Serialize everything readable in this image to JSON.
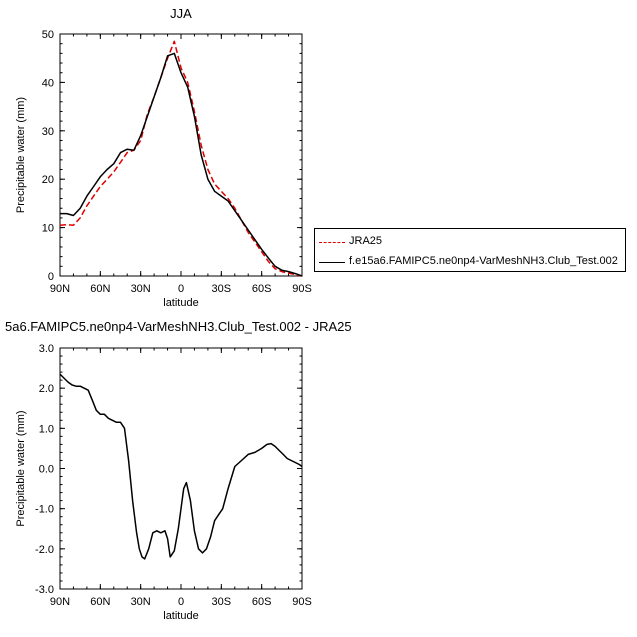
{
  "chart_data": [
    {
      "type": "line",
      "title": "JJA",
      "xlabel": "latitude",
      "ylabel": "Precipitable water (mm)",
      "xlim": [
        90,
        -90
      ],
      "ylim": [
        0,
        50
      ],
      "xticks": [
        90,
        60,
        30,
        0,
        -30,
        -60,
        -90
      ],
      "xtick_labels": [
        "90N",
        "60N",
        "30N",
        "0",
        "30S",
        "60S",
        "90S"
      ],
      "yticks": [
        0,
        10,
        20,
        30,
        40,
        50
      ],
      "ytick_labels": [
        "0",
        "10",
        "20",
        "30",
        "40",
        "50"
      ],
      "legend": "right",
      "series": [
        {
          "name": "JRA25",
          "color": "#e00000",
          "style": "dashed",
          "x": [
            90,
            85,
            80,
            75,
            70,
            65,
            60,
            55,
            50,
            45,
            40,
            35,
            30,
            25,
            20,
            15,
            10,
            5,
            0,
            -5,
            -10,
            -15,
            -20,
            -25,
            -30,
            -35,
            -40,
            -45,
            -50,
            -55,
            -60,
            -65,
            -70,
            -75,
            -80,
            -85,
            -90
          ],
          "y": [
            10.5,
            10.6,
            10.5,
            12.0,
            14.5,
            16.5,
            18.5,
            20.0,
            21.5,
            23.5,
            25.5,
            26.0,
            28.0,
            33.5,
            37.0,
            41.0,
            45.0,
            48.5,
            43.0,
            40.0,
            34.0,
            27.0,
            22.0,
            19.0,
            17.5,
            16.0,
            14.0,
            11.5,
            9.0,
            7.0,
            5.0,
            3.0,
            1.5,
            0.9,
            0.6,
            0.3,
            0.0
          ]
        },
        {
          "name": "f.e15a6.FAMIPC5.ne0np4-VarMeshNH3.Club_Test.002",
          "color": "#000000",
          "style": "solid",
          "x": [
            90,
            85,
            80,
            75,
            70,
            65,
            60,
            55,
            50,
            45,
            40,
            35,
            30,
            25,
            20,
            15,
            10,
            5,
            0,
            -5,
            -10,
            -15,
            -20,
            -25,
            -30,
            -35,
            -40,
            -45,
            -50,
            -55,
            -60,
            -65,
            -70,
            -75,
            -80,
            -85,
            -90
          ],
          "y": [
            12.9,
            12.9,
            12.5,
            14.0,
            16.5,
            18.5,
            20.5,
            22.0,
            23.2,
            25.5,
            26.2,
            26.0,
            29.0,
            33.0,
            37.0,
            41.0,
            45.5,
            46.0,
            42.0,
            39.0,
            33.0,
            25.0,
            20.0,
            17.5,
            16.5,
            15.5,
            13.5,
            11.5,
            9.5,
            7.5,
            5.5,
            3.7,
            2.0,
            1.2,
            0.9,
            0.5,
            0.0
          ]
        }
      ]
    },
    {
      "type": "line",
      "title": "5a6.FAMIPC5.ne0np4-VarMeshNH3.Club_Test.002 - JRA25",
      "xlabel": "latitude",
      "ylabel": "Precipitable water (mm)",
      "xlim": [
        90,
        -90
      ],
      "ylim": [
        -3.0,
        3.0
      ],
      "xticks": [
        90,
        60,
        30,
        0,
        -30,
        -60,
        -90
      ],
      "xtick_labels": [
        "90N",
        "60N",
        "30N",
        "0",
        "30S",
        "60S",
        "90S"
      ],
      "yticks": [
        -3.0,
        -2.0,
        -1.0,
        0.0,
        1.0,
        2.0,
        3.0
      ],
      "ytick_labels": [
        "-3.0",
        "-2.0",
        "-1.0",
        "0.0",
        "1.0",
        "2.0",
        "3.0"
      ],
      "series": [
        {
          "color": "#000000",
          "style": "solid",
          "x": [
            90,
            87,
            84,
            81,
            78,
            75,
            72,
            69,
            66,
            63,
            60,
            57,
            54,
            51,
            48,
            45,
            42,
            39,
            36,
            33,
            31,
            29,
            27,
            24,
            21,
            18,
            15,
            12,
            10,
            8,
            5,
            2,
            0,
            -2,
            -4,
            -7,
            -10,
            -13,
            -16,
            -19,
            -22,
            -25,
            -28,
            -31,
            -35,
            -40,
            -45,
            -50,
            -55,
            -60,
            -64,
            -67,
            -70,
            -73,
            -76,
            -79,
            -82,
            -85,
            -88,
            -90
          ],
          "y": [
            2.35,
            2.25,
            2.15,
            2.08,
            2.05,
            2.05,
            2.0,
            1.95,
            1.7,
            1.45,
            1.35,
            1.35,
            1.25,
            1.2,
            1.15,
            1.15,
            1.0,
            0.2,
            -0.8,
            -1.6,
            -2.0,
            -2.2,
            -2.25,
            -2.0,
            -1.6,
            -1.55,
            -1.6,
            -1.55,
            -1.75,
            -2.2,
            -2.05,
            -1.5,
            -1.0,
            -0.5,
            -0.35,
            -0.8,
            -1.55,
            -2.0,
            -2.1,
            -2.0,
            -1.7,
            -1.3,
            -1.15,
            -1.0,
            -0.5,
            0.05,
            0.2,
            0.35,
            0.4,
            0.5,
            0.6,
            0.62,
            0.55,
            0.45,
            0.35,
            0.25,
            0.2,
            0.15,
            0.1,
            0.05
          ]
        }
      ]
    }
  ]
}
